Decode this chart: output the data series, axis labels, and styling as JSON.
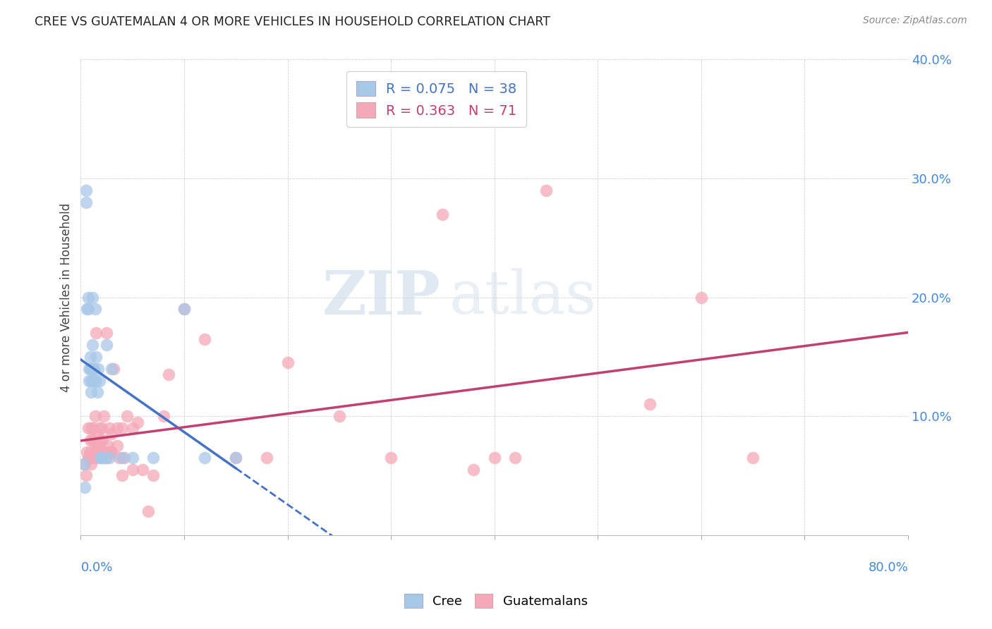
{
  "title": "CREE VS GUATEMALAN 4 OR MORE VEHICLES IN HOUSEHOLD CORRELATION CHART",
  "source": "Source: ZipAtlas.com",
  "ylabel": "4 or more Vehicles in Household",
  "xlim": [
    0.0,
    0.8
  ],
  "ylim": [
    0.0,
    0.4
  ],
  "yticks": [
    0.0,
    0.1,
    0.2,
    0.3,
    0.4
  ],
  "ytick_labels": [
    "",
    "10.0%",
    "20.0%",
    "30.0%",
    "40.0%"
  ],
  "xticks": [
    0.0,
    0.1,
    0.2,
    0.3,
    0.4,
    0.5,
    0.6,
    0.7,
    0.8
  ],
  "watermark_left": "ZIP",
  "watermark_right": "atlas",
  "cree_R": 0.075,
  "cree_N": 38,
  "guatemalan_R": 0.363,
  "guatemalan_N": 71,
  "cree_color": "#a8c8e8",
  "guatemalan_color": "#f4a8b8",
  "cree_line_color": "#4472c4",
  "guatemalan_line_color": "#c04070",
  "legend_text_color_1": "#4472c4",
  "legend_text_color_2": "#c04070",
  "cree_x": [
    0.003,
    0.004,
    0.005,
    0.005,
    0.006,
    0.007,
    0.007,
    0.008,
    0.008,
    0.009,
    0.009,
    0.01,
    0.01,
    0.01,
    0.011,
    0.011,
    0.012,
    0.012,
    0.013,
    0.013,
    0.014,
    0.015,
    0.015,
    0.016,
    0.017,
    0.018,
    0.019,
    0.02,
    0.022,
    0.025,
    0.028,
    0.03,
    0.04,
    0.05,
    0.07,
    0.1,
    0.12,
    0.15
  ],
  "cree_y": [
    0.06,
    0.04,
    0.29,
    0.28,
    0.19,
    0.19,
    0.2,
    0.13,
    0.14,
    0.14,
    0.15,
    0.12,
    0.13,
    0.14,
    0.16,
    0.2,
    0.13,
    0.14,
    0.13,
    0.14,
    0.19,
    0.13,
    0.15,
    0.12,
    0.14,
    0.13,
    0.065,
    0.065,
    0.065,
    0.16,
    0.065,
    0.14,
    0.065,
    0.065,
    0.065,
    0.19,
    0.065,
    0.065
  ],
  "guatemalan_x": [
    0.004,
    0.005,
    0.006,
    0.007,
    0.007,
    0.008,
    0.009,
    0.009,
    0.01,
    0.01,
    0.011,
    0.011,
    0.012,
    0.012,
    0.013,
    0.013,
    0.014,
    0.014,
    0.015,
    0.015,
    0.016,
    0.016,
    0.017,
    0.018,
    0.018,
    0.019,
    0.02,
    0.02,
    0.021,
    0.022,
    0.023,
    0.024,
    0.025,
    0.025,
    0.026,
    0.027,
    0.028,
    0.029,
    0.03,
    0.03,
    0.032,
    0.035,
    0.035,
    0.037,
    0.04,
    0.04,
    0.042,
    0.045,
    0.05,
    0.05,
    0.055,
    0.06,
    0.065,
    0.07,
    0.08,
    0.085,
    0.1,
    0.12,
    0.15,
    0.18,
    0.2,
    0.25,
    0.3,
    0.35,
    0.38,
    0.4,
    0.42,
    0.45,
    0.55,
    0.6,
    0.65
  ],
  "guatemalan_y": [
    0.06,
    0.05,
    0.07,
    0.065,
    0.09,
    0.065,
    0.07,
    0.08,
    0.06,
    0.09,
    0.065,
    0.08,
    0.07,
    0.09,
    0.065,
    0.08,
    0.07,
    0.1,
    0.07,
    0.17,
    0.065,
    0.085,
    0.075,
    0.075,
    0.09,
    0.08,
    0.065,
    0.09,
    0.08,
    0.1,
    0.07,
    0.065,
    0.065,
    0.17,
    0.075,
    0.07,
    0.09,
    0.07,
    0.07,
    0.085,
    0.14,
    0.075,
    0.09,
    0.065,
    0.05,
    0.09,
    0.065,
    0.1,
    0.055,
    0.09,
    0.095,
    0.055,
    0.02,
    0.05,
    0.1,
    0.135,
    0.19,
    0.165,
    0.065,
    0.065,
    0.145,
    0.1,
    0.065,
    0.27,
    0.055,
    0.065,
    0.065,
    0.29,
    0.11,
    0.2,
    0.065
  ],
  "cree_line_start_x": 0.0,
  "cree_line_end_x": 0.8,
  "guatemalan_line_start_x": 0.0,
  "guatemalan_line_end_x": 0.8,
  "cree_line_solid_end": 0.15,
  "background_color": "#ffffff"
}
